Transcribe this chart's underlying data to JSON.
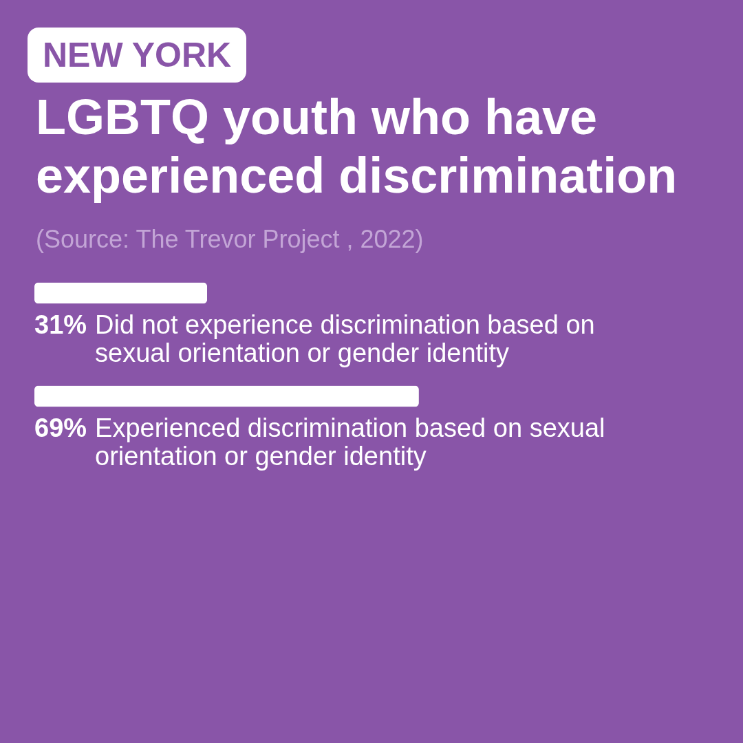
{
  "chart_data": {
    "type": "bar",
    "orientation": "horizontal",
    "title": "LGBTQ youth who have experienced discrimination",
    "subtitle": "NEW YORK",
    "annotations": [
      "(Source: The Trevor Project , 2022)"
    ],
    "categories": [
      "Did not experience discrimination based on sexual orientation or gender identity",
      "Experienced discrimination based on sexual orientation or gender identity"
    ],
    "values": [
      31,
      69
    ],
    "value_labels": [
      "31%",
      "69%"
    ],
    "color": "#ffffff"
  }
}
